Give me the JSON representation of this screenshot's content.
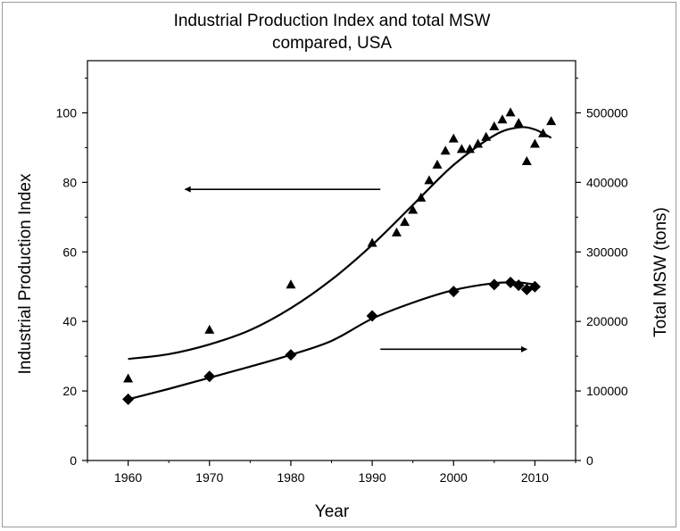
{
  "chart_data": {
    "type": "scatter",
    "title": "Industrial Production Index and total MSW compared, USA",
    "title_lines": [
      "Industrial Production Index and total MSW",
      "compared, USA"
    ],
    "xlabel": "Year",
    "ylabel": "Industrial Production Index",
    "y2label": "Total MSW (tons)",
    "xlim": [
      1955,
      2015
    ],
    "ylim": [
      0,
      115
    ],
    "y2lim": [
      0,
      575000
    ],
    "x_ticks": [
      1960,
      1970,
      1980,
      1990,
      2000,
      2010
    ],
    "y_ticks": [
      0,
      20,
      40,
      60,
      80,
      100
    ],
    "y2_ticks": [
      0,
      100000,
      200000,
      300000,
      400000,
      500000
    ],
    "grid": false,
    "series": [
      {
        "marker": "triangle",
        "axis": "left",
        "color": "#000000",
        "points": [
          [
            1960,
            23.5
          ],
          [
            1970,
            37.5
          ],
          [
            1980,
            50.5
          ],
          [
            1990,
            62.5
          ],
          [
            1993,
            65.5
          ],
          [
            1994,
            68.5
          ],
          [
            1995,
            72
          ],
          [
            1996,
            75.5
          ],
          [
            1997,
            80.5
          ],
          [
            1998,
            85
          ],
          [
            1999,
            89
          ],
          [
            2000,
            92.5
          ],
          [
            2001,
            89.5
          ],
          [
            2002,
            89.5
          ],
          [
            2003,
            91
          ],
          [
            2004,
            93
          ],
          [
            2005,
            96
          ],
          [
            2006,
            98
          ],
          [
            2007,
            100
          ],
          [
            2008,
            97
          ],
          [
            2009,
            86
          ],
          [
            2010,
            91
          ],
          [
            2011,
            94
          ],
          [
            2012,
            97.5
          ]
        ]
      },
      {
        "marker": "diamond",
        "axis": "right",
        "color": "#000000",
        "points": [
          [
            1960,
            88000
          ],
          [
            1970,
            121000
          ],
          [
            1980,
            152000
          ],
          [
            1990,
            208000
          ],
          [
            2000,
            243000
          ],
          [
            2005,
            253000
          ],
          [
            2007,
            256000
          ],
          [
            2008,
            252000
          ],
          [
            2009,
            246000
          ],
          [
            2010,
            250000
          ]
        ]
      }
    ],
    "fits": [
      {
        "name": "ipi-fit",
        "axis": "left",
        "points": [
          [
            1960,
            29.2
          ],
          [
            1965,
            30.6
          ],
          [
            1970,
            33.4
          ],
          [
            1975,
            37.5
          ],
          [
            1980,
            43.8
          ],
          [
            1985,
            52.0
          ],
          [
            1990,
            62.0
          ],
          [
            1995,
            73.5
          ],
          [
            2000,
            85.0
          ],
          [
            2005,
            93.5
          ],
          [
            2008,
            95.8
          ],
          [
            2010,
            95.2
          ],
          [
            2012,
            92.8
          ]
        ]
      },
      {
        "name": "msw-fit",
        "axis": "right",
        "points": [
          [
            1960,
            88000
          ],
          [
            1965,
            103000
          ],
          [
            1970,
            119000
          ],
          [
            1975,
            135000
          ],
          [
            1980,
            152000
          ],
          [
            1985,
            172000
          ],
          [
            1990,
            204000
          ],
          [
            1995,
            227000
          ],
          [
            2000,
            245000
          ],
          [
            2005,
            255000
          ],
          [
            2008,
            256000
          ],
          [
            2010,
            253000
          ]
        ]
      }
    ],
    "annotations": [
      {
        "type": "arrow",
        "axis": "left",
        "from": [
          1991,
          78
        ],
        "to": [
          1967,
          78
        ],
        "meaning": "points to left axis"
      },
      {
        "type": "arrow",
        "axis": "right",
        "from": [
          1991,
          160000
        ],
        "to": [
          2009,
          160000
        ],
        "meaning": "points to right axis"
      }
    ]
  }
}
